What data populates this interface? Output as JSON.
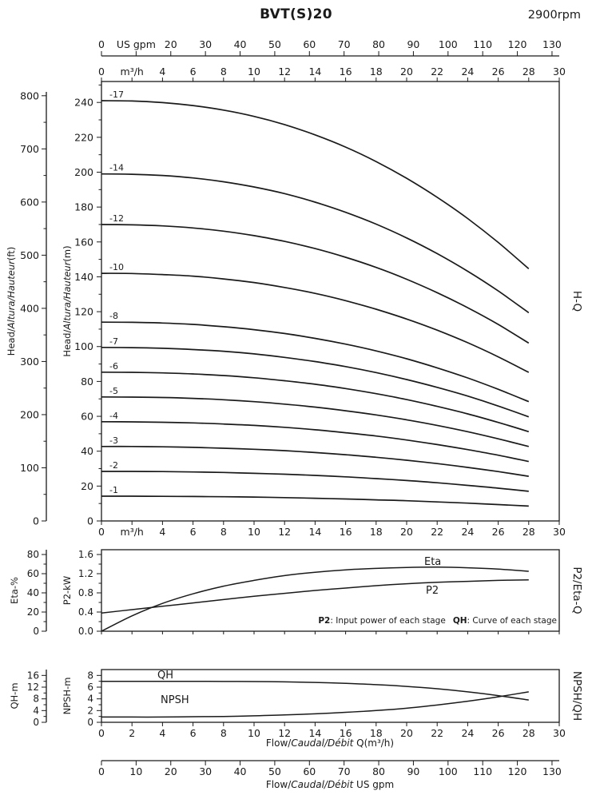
{
  "header": {
    "title": "BVT(S)20",
    "rpm": "2900rpm"
  },
  "side_labels": {
    "main": "H-Q",
    "middle": "P2/Eta-Q",
    "bottom": "NPSH/QH"
  },
  "note": {
    "p2_term": "P2",
    "p2_desc": ": Input power of each stage",
    "qh_term": "QH",
    "qh_desc": ": Curve of each stage"
  },
  "flow_axis": {
    "gpm": {
      "values": [
        0,
        10,
        20,
        30,
        40,
        50,
        60,
        70,
        80,
        90,
        100,
        110,
        120,
        130
      ],
      "labels_top": [
        "0",
        "US gpm",
        "20",
        "30",
        "40",
        "50",
        "60",
        "70",
        "80",
        "90",
        "100",
        "110",
        "120",
        "130"
      ],
      "labels_bottom": [
        "0",
        "10",
        "20",
        "30",
        "40",
        "50",
        "60",
        "70",
        "80",
        "90",
        "100",
        "110",
        "120",
        "130"
      ]
    },
    "m3h": {
      "values": [
        0,
        2,
        4,
        6,
        8,
        10,
        12,
        14,
        16,
        18,
        20,
        22,
        24,
        26,
        28,
        30
      ],
      "labels": [
        "0",
        "m³/h",
        "4",
        "6",
        "8",
        "10",
        "12",
        "14",
        "16",
        "18",
        "20",
        "22",
        "24",
        "26",
        "28",
        "30"
      ],
      "labels_plain": [
        "0",
        "2",
        "4",
        "6",
        "8",
        "10",
        "12",
        "14",
        "16",
        "18",
        "20",
        "22",
        "24",
        "26",
        "28",
        "30"
      ]
    },
    "title_m3h": {
      "pre": "Flow/",
      "italic": "Caudal/Débit",
      "post": " Q(m³/h)"
    },
    "title_gpm": {
      "pre": "Flow/",
      "italic": "Caudal/Débit",
      "post": " US gpm"
    }
  },
  "chart_data": [
    {
      "type": "line",
      "name": "H-Q",
      "x_unit": "m³/h",
      "x_range": [
        0,
        30
      ],
      "y_outer": {
        "title": {
          "pre": "Head/",
          "italic": "Altura/Hauteur",
          "post": "(ft)"
        },
        "unit": "ft",
        "ticks": [
          0,
          100,
          200,
          300,
          400,
          500,
          600,
          700,
          800
        ],
        "range": [
          0,
          826.8
        ]
      },
      "y_inner": {
        "title": {
          "pre": "Head/",
          "italic": "Altura/Hauteur",
          "post": "(m)"
        },
        "unit": "m",
        "ticks": [
          0,
          20,
          40,
          60,
          80,
          100,
          120,
          140,
          160,
          180,
          200,
          220,
          240
        ],
        "range": [
          0,
          252
        ]
      },
      "x": [
        0,
        2,
        4,
        6,
        8,
        10,
        12,
        14,
        16,
        18,
        20,
        22,
        24,
        26,
        28
      ],
      "series": [
        {
          "name": "-17",
          "values": [
            241,
            240.8,
            239.9,
            238.2,
            235.6,
            232,
            227.3,
            221.4,
            214.4,
            206.1,
            196.5,
            185.6,
            173.4,
            159.7,
            144.6
          ]
        },
        {
          "name": "-14",
          "values": [
            199,
            198.8,
            198.1,
            196.7,
            194.5,
            191.5,
            187.7,
            182.8,
            177,
            170.2,
            162.3,
            153.3,
            143.2,
            131.9,
            119.4
          ]
        },
        {
          "name": "-12",
          "values": [
            170,
            169.8,
            169.2,
            168,
            166.2,
            163.6,
            160.3,
            156.2,
            151.2,
            145.4,
            138.6,
            130.9,
            122.3,
            112.7,
            102
          ]
        },
        {
          "name": "-10",
          "values": [
            142,
            141.9,
            141.3,
            140.4,
            138.8,
            136.7,
            133.9,
            130.5,
            126.3,
            121.4,
            115.8,
            109.4,
            102.2,
            94.1,
            85.2
          ]
        },
        {
          "name": "-8",
          "values": [
            114,
            113.9,
            113.5,
            112.7,
            111.4,
            109.7,
            107.5,
            104.7,
            101.4,
            97.5,
            93,
            87.8,
            82,
            75.5,
            68.4
          ]
        },
        {
          "name": "-7",
          "values": [
            99.5,
            99.4,
            99,
            98.3,
            97.3,
            95.8,
            93.8,
            91.4,
            88.5,
            85.1,
            81.1,
            76.6,
            71.6,
            65.9,
            59.7
          ]
        },
        {
          "name": "-6",
          "values": [
            85.3,
            85.2,
            84.9,
            84.3,
            83.4,
            82.1,
            80.4,
            78.4,
            75.9,
            73,
            69.6,
            65.7,
            61.4,
            56.5,
            51.2
          ]
        },
        {
          "name": "-5",
          "values": [
            71.1,
            71,
            70.8,
            70.3,
            69.5,
            68.4,
            67,
            65.3,
            63.2,
            60.8,
            58,
            54.8,
            51.2,
            47.1,
            42.7
          ]
        },
        {
          "name": "-4",
          "values": [
            56.9,
            56.8,
            56.6,
            56.2,
            55.6,
            54.8,
            53.7,
            52.3,
            50.6,
            48.7,
            46.4,
            43.8,
            40.9,
            37.7,
            34.1
          ]
        },
        {
          "name": "-3",
          "values": [
            42.7,
            42.7,
            42.5,
            42.2,
            41.7,
            41.1,
            40.3,
            39.2,
            38,
            36.5,
            34.8,
            32.9,
            30.7,
            28.3,
            25.6
          ]
        },
        {
          "name": "-2",
          "values": [
            28.4,
            28.4,
            28.3,
            28.1,
            27.8,
            27.3,
            26.8,
            26.1,
            25.3,
            24.3,
            23.2,
            21.9,
            20.4,
            18.8,
            17
          ]
        },
        {
          "name": "-1",
          "values": [
            14.2,
            14.2,
            14.1,
            14,
            13.9,
            13.7,
            13.4,
            13,
            12.6,
            12.1,
            11.6,
            10.9,
            10.2,
            9.4,
            8.5
          ]
        }
      ]
    },
    {
      "type": "line",
      "name": "P2/Eta-Q",
      "x_range": [
        0,
        30
      ],
      "y_outer": {
        "label": "Eta-%",
        "ticks": [
          0,
          20,
          40,
          60,
          80
        ],
        "range": [
          0,
          85
        ]
      },
      "y_inner": {
        "label": "P2-kW",
        "tick_values": [
          0,
          0.4,
          0.8,
          1.2,
          1.6
        ],
        "tick_labels": [
          "0.0",
          "0.4",
          "0.8",
          "1.2",
          "1.6"
        ],
        "range": [
          0,
          1.7
        ]
      },
      "x": [
        0,
        2,
        4,
        6,
        8,
        10,
        12,
        14,
        16,
        18,
        20,
        22,
        24,
        26,
        28
      ],
      "series": [
        {
          "name": "Eta",
          "axis": "outer",
          "values": [
            0,
            16,
            29,
            39,
            47,
            53,
            58,
            61.5,
            64,
            65.5,
            66.5,
            66.8,
            66.2,
            64.8,
            62.5
          ]
        },
        {
          "name": "P2",
          "axis": "inner",
          "values": [
            0.38,
            0.45,
            0.52,
            0.59,
            0.66,
            0.73,
            0.79,
            0.85,
            0.9,
            0.95,
            0.99,
            1.02,
            1.04,
            1.06,
            1.07
          ]
        }
      ]
    },
    {
      "type": "line",
      "name": "NPSH/QH",
      "x_range": [
        0,
        30
      ],
      "y_outer": {
        "label": "QH-m",
        "ticks": [
          0,
          4,
          8,
          12,
          16
        ],
        "range": [
          0,
          18
        ]
      },
      "y_inner": {
        "label": "NPSH-m",
        "ticks": [
          0,
          2,
          4,
          6,
          8
        ],
        "range": [
          0,
          9
        ]
      },
      "x": [
        0,
        2,
        4,
        6,
        8,
        10,
        12,
        14,
        16,
        18,
        20,
        22,
        24,
        26,
        28
      ],
      "series": [
        {
          "name": "QH",
          "axis": "outer",
          "values": [
            14,
            14,
            14,
            13.98,
            13.95,
            13.9,
            13.8,
            13.6,
            13.3,
            12.85,
            12.25,
            11.45,
            10.4,
            9.1,
            7.6
          ]
        },
        {
          "name": "NPSH",
          "axis": "inner",
          "values": [
            0.9,
            0.9,
            0.9,
            0.95,
            1,
            1.1,
            1.25,
            1.45,
            1.7,
            2,
            2.4,
            2.95,
            3.6,
            4.35,
            5.2
          ]
        }
      ]
    }
  ]
}
